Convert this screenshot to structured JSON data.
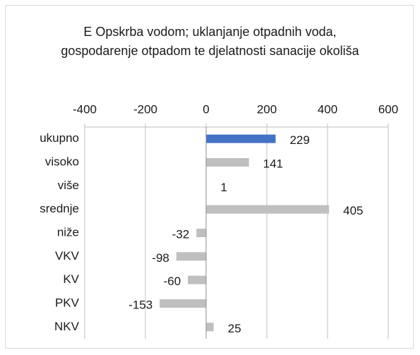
{
  "chart_data": {
    "type": "bar",
    "orientation": "horizontal",
    "title": "E  Opskrba vodom; uklanjanje otpadnih voda, gospodarenje otpadom te djelatnosti sanacije okoliša",
    "categories": [
      "ukupno",
      "visoko",
      "više",
      "srednje",
      "niže",
      "VKV",
      "KV",
      "PKV",
      "NKV"
    ],
    "values": [
      229,
      141,
      1,
      405,
      -32,
      -98,
      -60,
      -153,
      25
    ],
    "colors": [
      "#4472c4",
      "#bfbfbf",
      "#bfbfbf",
      "#bfbfbf",
      "#bfbfbf",
      "#bfbfbf",
      "#bfbfbf",
      "#bfbfbf",
      "#bfbfbf"
    ],
    "xlim": [
      -400,
      600
    ],
    "xticks": [
      -400,
      -200,
      0,
      200,
      400,
      600
    ],
    "grid": true
  }
}
